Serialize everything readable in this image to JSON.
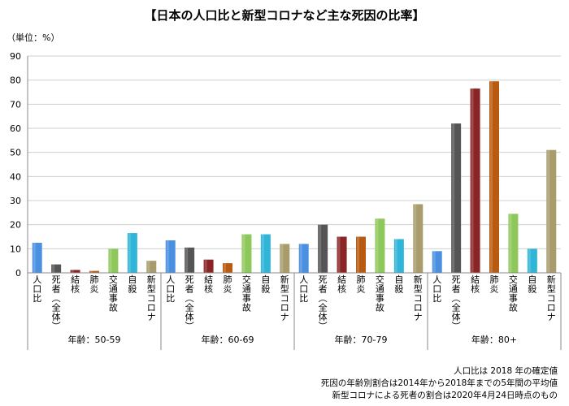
{
  "title": "【日本の人口比と新型コロナなど主な死因の比率】",
  "unit_label": "（単位：%）",
  "notes": [
    "人口比は 2018 年の確定値",
    "死因の年齢別割合は2014年から2018年までの5年間の平均値",
    "新型コロナによる死者の割合は2020年4月24日時点のもの"
  ],
  "chart_data": {
    "type": "bar",
    "title": "【日本の人口比と新型コロナなど主な死因の比率】",
    "ylabel": "（単位：%）",
    "ylim": [
      0,
      90
    ],
    "yticks": [
      0,
      10,
      20,
      30,
      40,
      50,
      60,
      70,
      80,
      90
    ],
    "grid": true,
    "categories": [
      "人口比",
      "死者（全体）",
      "結核",
      "肺炎",
      "交通事故",
      "自殺",
      "新型コロナ"
    ],
    "category_colors": [
      "#4a8fe0",
      "#555555",
      "#8b2525",
      "#b85a10",
      "#8fc85a",
      "#2fb5d8",
      "#a89c6c"
    ],
    "groups": [
      {
        "label": "年齢：50-59",
        "values": [
          12.5,
          3.5,
          1.2,
          0.8,
          10,
          16.5,
          5
        ]
      },
      {
        "label": "年齢：60-69",
        "values": [
          13.5,
          10.5,
          5.5,
          4,
          16,
          16,
          12
        ]
      },
      {
        "label": "年齢：70-79",
        "values": [
          12,
          20,
          15,
          15,
          22.5,
          14,
          28.5
        ]
      },
      {
        "label": "年齢：80+",
        "values": [
          9,
          62,
          76.5,
          79.5,
          24.5,
          10,
          51
        ]
      }
    ]
  }
}
